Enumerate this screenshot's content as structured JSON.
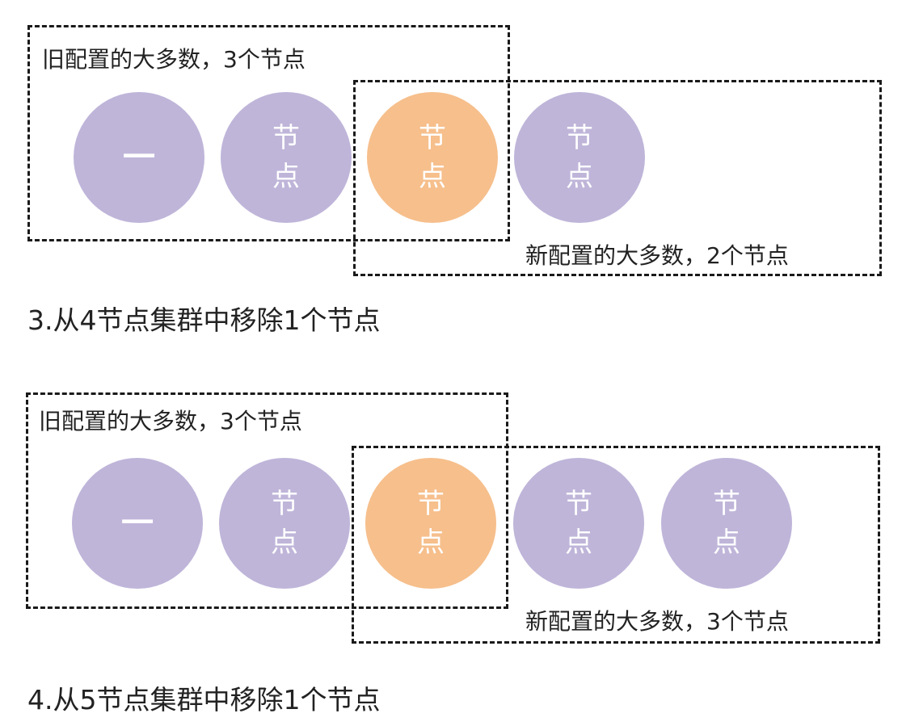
{
  "diagrams": [
    {
      "old_label": "旧配置的大多数，3个节点",
      "new_label": "新配置的大多数，2个节点",
      "caption": "3.从4节点集群中移除1个节点",
      "nodes": [
        {
          "text": "一"
        },
        {
          "text1": "节",
          "text2": "点"
        },
        {
          "text1": "节",
          "text2": "点"
        },
        {
          "text1": "节",
          "text2": "点"
        }
      ]
    },
    {
      "old_label": "旧配置的大多数，3个节点",
      "new_label": "新配置的大多数，3个节点",
      "caption": "4.从5节点集群中移除1个节点",
      "nodes": [
        {
          "text": "一"
        },
        {
          "text1": "节",
          "text2": "点"
        },
        {
          "text1": "节",
          "text2": "点"
        },
        {
          "text1": "节",
          "text2": "点"
        },
        {
          "text1": "节",
          "text2": "点"
        }
      ]
    }
  ],
  "colors": {
    "node": "#bfb5d9",
    "highlight_node": "#f6bf8c"
  }
}
